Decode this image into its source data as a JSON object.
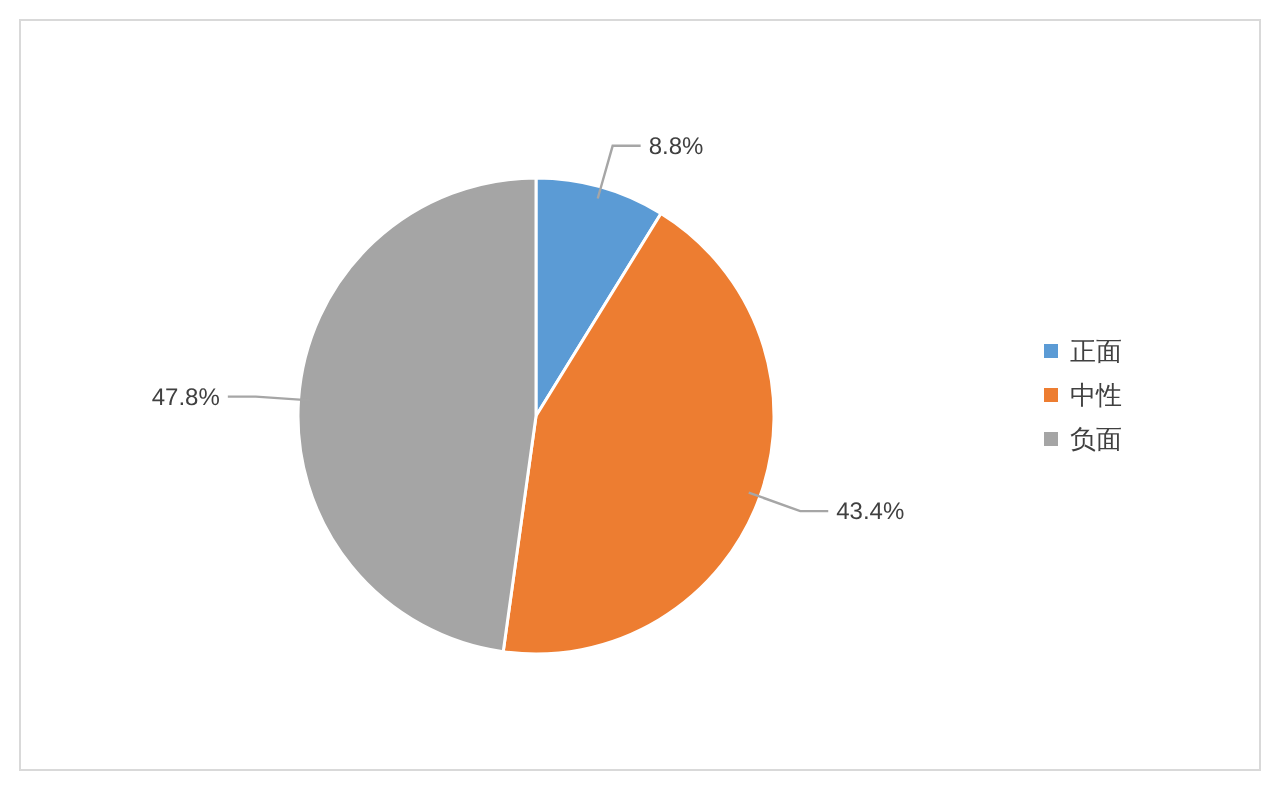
{
  "chart_data": {
    "type": "pie",
    "categories": [
      "正面",
      "中性",
      "负面"
    ],
    "values": [
      8.8,
      43.4,
      47.8
    ],
    "colors": [
      "#5b9bd5",
      "#ed7d31",
      "#a5a5a5"
    ],
    "value_labels": [
      "8.8%",
      "43.4%",
      "47.8%"
    ],
    "legend": "right"
  }
}
